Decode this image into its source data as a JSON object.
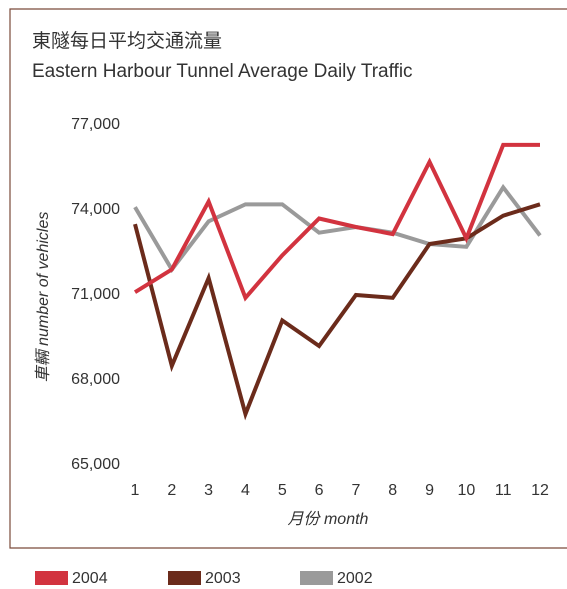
{
  "chart_data": {
    "type": "line",
    "title": "東隧每日平均交通流量",
    "subtitle": "Eastern Harbour Tunnel Average Daily Traffic",
    "x_label": "月份 month",
    "y_label": "車輛 number of vehicles",
    "categories": [
      "1",
      "2",
      "3",
      "4",
      "5",
      "6",
      "7",
      "8",
      "9",
      "10",
      "11",
      "12"
    ],
    "series": [
      {
        "name": "2004",
        "color": "#d2333f",
        "values": [
          71100,
          71900,
          74300,
          70900,
          72400,
          73700,
          73400,
          73150,
          75700,
          73000,
          76300,
          76300
        ]
      },
      {
        "name": "2003",
        "color": "#6b2b1b",
        "values": [
          73500,
          68500,
          71600,
          66800,
          70100,
          69200,
          71000,
          70900,
          72800,
          73000,
          73800,
          74200
        ]
      },
      {
        "name": "2002",
        "color": "#9a9a9a",
        "values": [
          74100,
          71900,
          73600,
          74200,
          74200,
          73200,
          73400,
          73200,
          72800,
          72700,
          74800,
          73100
        ]
      }
    ],
    "ylim": [
      65000,
      77000
    ],
    "yticks": [
      {
        "value": 65000,
        "label": "65,000"
      },
      {
        "value": 68000,
        "label": "68,000"
      },
      {
        "value": 71000,
        "label": "71,000"
      },
      {
        "value": 74000,
        "label": "74,000"
      },
      {
        "value": 77000,
        "label": "77,000"
      }
    ],
    "grid": false,
    "legend": "bottom"
  }
}
